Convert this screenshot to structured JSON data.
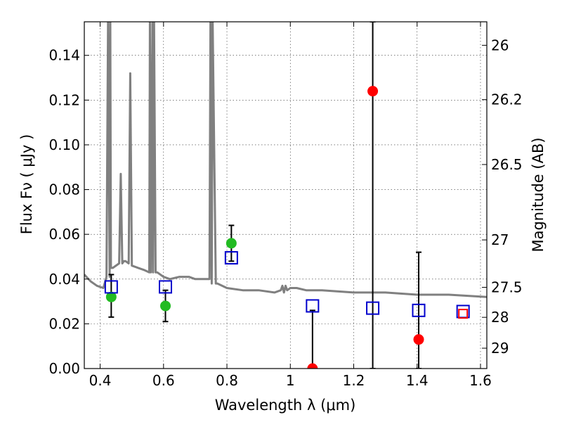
{
  "chart_data": {
    "type": "scatter",
    "xlabel": "Wavelength  λ (μm)",
    "ylabel_left": "Flux  Fν  ( μJy )",
    "ylabel_right": "Magnitude (AB)",
    "xlim": [
      0.35,
      1.62
    ],
    "ylim": [
      0.0,
      0.155
    ],
    "grid": true,
    "x_ticks": [
      {
        "value": 0.4,
        "label": "0.4"
      },
      {
        "value": 0.6,
        "label": "0.6"
      },
      {
        "value": 0.8,
        "label": "0.8"
      },
      {
        "value": 1.0,
        "label": "1"
      },
      {
        "value": 1.2,
        "label": "1.2"
      },
      {
        "value": 1.4,
        "label": "1.4"
      },
      {
        "value": 1.6,
        "label": "1.6"
      }
    ],
    "y_ticks": [
      {
        "value": 0.0,
        "label": "0.00"
      },
      {
        "value": 0.02,
        "label": "0.02"
      },
      {
        "value": 0.04,
        "label": "0.04"
      },
      {
        "value": 0.06,
        "label": "0.06"
      },
      {
        "value": 0.08,
        "label": "0.08"
      },
      {
        "value": 0.1,
        "label": "0.10"
      },
      {
        "value": 0.12,
        "label": "0.12"
      },
      {
        "value": 0.14,
        "label": "0.14"
      }
    ],
    "mag_ticks": [
      {
        "label": "26",
        "flux": 0.1445
      },
      {
        "label": "26.2",
        "flux": 0.1202
      },
      {
        "label": "26.5",
        "flux": 0.0912
      },
      {
        "label": "27",
        "flux": 0.0575
      },
      {
        "label": "27.5",
        "flux": 0.0363
      },
      {
        "label": "28",
        "flux": 0.0229
      },
      {
        "label": "29",
        "flux": 0.0091
      }
    ],
    "series": [
      {
        "name": "observed flux (green)",
        "color": "#22bb22",
        "marker": "circle",
        "points": [
          {
            "x": 0.435,
            "y": 0.032,
            "yerr_low": 0.023,
            "yerr_high": 0.042
          },
          {
            "x": 0.606,
            "y": 0.028,
            "yerr_low": 0.021,
            "yerr_high": 0.035
          },
          {
            "x": 0.814,
            "y": 0.056,
            "yerr_low": 0.048,
            "yerr_high": 0.064
          }
        ]
      },
      {
        "name": "observed flux (red)",
        "color": "#ff0000",
        "marker": "circle",
        "points": [
          {
            "x": 1.07,
            "y": 0.0,
            "yerr_low": 0.0,
            "yerr_high": 0.026
          },
          {
            "x": 1.26,
            "y": 0.124,
            "yerr_low": 0.0,
            "yerr_high": 0.155
          },
          {
            "x": 1.405,
            "y": 0.013,
            "yerr_low": 0.0,
            "yerr_high": 0.052
          }
        ]
      },
      {
        "name": "model photometry",
        "color": "#0000cc",
        "marker": "square",
        "points": [
          {
            "x": 0.435,
            "y": 0.0365
          },
          {
            "x": 0.606,
            "y": 0.0365
          },
          {
            "x": 0.814,
            "y": 0.0495
          },
          {
            "x": 1.07,
            "y": 0.028
          },
          {
            "x": 1.26,
            "y": 0.027
          },
          {
            "x": 1.405,
            "y": 0.026
          },
          {
            "x": 1.545,
            "y": 0.0255
          }
        ]
      },
      {
        "name": "upper-limit marker",
        "color": "#ff0000",
        "marker": "square",
        "points": [
          {
            "x": 1.545,
            "y": 0.0245
          }
        ]
      }
    ],
    "spectrum": {
      "name": "best-fit SED",
      "color": "#808080",
      "x": [
        0.35,
        0.37,
        0.39,
        0.41,
        0.42,
        0.425,
        0.43,
        0.432,
        0.434,
        0.44,
        0.46,
        0.465,
        0.47,
        0.475,
        0.48,
        0.49,
        0.495,
        0.5,
        0.5,
        0.52,
        0.54,
        0.555,
        0.557,
        0.56,
        0.565,
        0.567,
        0.57,
        0.575,
        0.58,
        0.6,
        0.62,
        0.65,
        0.68,
        0.7,
        0.72,
        0.745,
        0.748,
        0.752,
        0.755,
        0.765,
        0.77,
        0.8,
        0.85,
        0.9,
        0.95,
        0.97,
        0.975,
        0.98,
        0.985,
        0.99,
        1.0,
        1.02,
        1.05,
        1.1,
        1.2,
        1.3,
        1.4,
        1.5,
        1.62
      ],
      "y": [
        0.042,
        0.039,
        0.037,
        0.036,
        0.041,
        0.155,
        0.041,
        0.155,
        0.045,
        0.045,
        0.047,
        0.087,
        0.047,
        0.048,
        0.048,
        0.047,
        0.132,
        0.046,
        0.046,
        0.045,
        0.044,
        0.043,
        0.155,
        0.043,
        0.155,
        0.043,
        0.155,
        0.043,
        0.043,
        0.041,
        0.04,
        0.041,
        0.041,
        0.04,
        0.04,
        0.04,
        0.155,
        0.038,
        0.155,
        0.038,
        0.038,
        0.036,
        0.035,
        0.035,
        0.034,
        0.035,
        0.037,
        0.034,
        0.037,
        0.035,
        0.036,
        0.036,
        0.035,
        0.035,
        0.034,
        0.034,
        0.033,
        0.033,
        0.032
      ]
    }
  }
}
